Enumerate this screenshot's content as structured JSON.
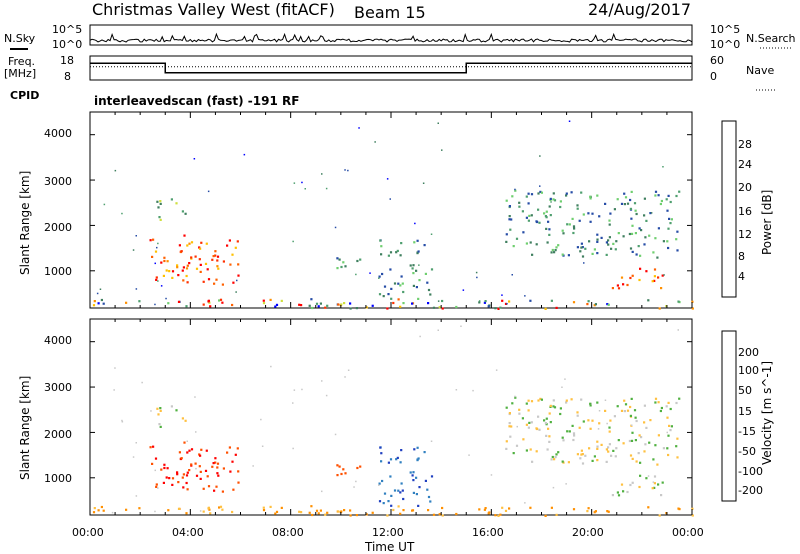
{
  "header": {
    "station": "Christmas Valley West (fitACF)",
    "beam": "Beam 15",
    "date": "24/Aug/2017"
  },
  "nsky_panel": {
    "left_label": "N.Sky",
    "right_label": "N.Search",
    "left_ticks": [
      "10^5",
      "10^0"
    ],
    "right_ticks": [
      "10^5",
      "10^0"
    ]
  },
  "freq_panel": {
    "left_label_line1": "Freq.",
    "left_label_line2": "[MHz]",
    "right_label": "Nave",
    "left_ticks": [
      "18",
      "8"
    ],
    "right_ticks": [
      "60",
      "0"
    ]
  },
  "cpid": {
    "label": "CPID",
    "value": "interleavedscan (fast) -191 RF"
  },
  "colors": {
    "power": [
      "#0000ff",
      "#264ca6",
      "#3f7f5f",
      "#4f9f6f",
      "#6fcf6f",
      "#cfdf3f",
      "#ffc000",
      "#ff9000",
      "#ff6000",
      "#ff3000",
      "#ff0000"
    ],
    "velocity": [
      "#ff0000",
      "#ff5000",
      "#ff9000",
      "#ffc040",
      "#c8c8c8",
      "#50b040",
      "#80d040",
      "#3080c0",
      "#2040c0"
    ],
    "ground": "#c8c8c8"
  },
  "chart_data": [
    {
      "type": "heatmap",
      "name_hint": "power",
      "ylabel": "Slant Range [km]",
      "xlabel": "",
      "colorbar_label": "Power [dB]",
      "colorbar_ticks": [
        "4",
        "8",
        "12",
        "16",
        "20",
        "24",
        "28"
      ],
      "y_ticks": [
        "1000",
        "2000",
        "3000",
        "4000"
      ],
      "ylim": [
        180,
        4500
      ],
      "xlim": [
        0,
        24
      ],
      "echo_regions": [
        {
          "t0": 2.2,
          "t1": 6.0,
          "r0": 700,
          "r1": 1800,
          "level": "high"
        },
        {
          "t0": 2.6,
          "t1": 3.8,
          "r0": 2100,
          "r1": 2600,
          "level": "medium"
        },
        {
          "t0": 9.2,
          "t1": 11.2,
          "r0": 1050,
          "r1": 1300,
          "level": "low"
        },
        {
          "t0": 11.5,
          "t1": 13.6,
          "r0": 400,
          "r1": 1700,
          "level": "low"
        },
        {
          "t0": 16.5,
          "t1": 23.5,
          "r0": 1300,
          "r1": 2800,
          "level": "low"
        },
        {
          "t0": 20.8,
          "t1": 23.0,
          "r0": 600,
          "r1": 1100,
          "level": "high"
        },
        {
          "t0": 0.0,
          "t1": 24.0,
          "r0": 180,
          "r1": 400,
          "level": "mixed"
        }
      ]
    },
    {
      "type": "heatmap",
      "name_hint": "velocity",
      "ylabel": "Slant Range [km]",
      "xlabel": "Time UT",
      "colorbar_label": "Velocity [m s^-1]",
      "colorbar_ticks": [
        "200",
        "100",
        "50",
        "15",
        "-15",
        "-50",
        "-100",
        "-200"
      ],
      "y_ticks": [
        "1000",
        "2000",
        "3000",
        "4000"
      ],
      "x_ticks": [
        "00:00",
        "04:00",
        "08:00",
        "12:00",
        "16:00",
        "20:00",
        "00:00"
      ],
      "ylim": [
        180,
        4500
      ],
      "xlim": [
        0,
        24
      ],
      "echo_regions": [
        {
          "t0": 2.2,
          "t1": 6.0,
          "r0": 700,
          "r1": 1800,
          "velocity": -150
        },
        {
          "t0": 2.6,
          "t1": 3.8,
          "r0": 2100,
          "r1": 2600,
          "velocity": 0
        },
        {
          "t0": 9.2,
          "t1": 11.2,
          "r0": 1050,
          "r1": 1300,
          "velocity": -100
        },
        {
          "t0": 11.5,
          "t1": 13.6,
          "r0": 400,
          "r1": 1700,
          "velocity": 150
        },
        {
          "t0": 16.5,
          "t1": 23.5,
          "r0": 1300,
          "r1": 2800,
          "velocity": 0
        },
        {
          "t0": 20.8,
          "t1": 23.0,
          "r0": 600,
          "r1": 1100,
          "velocity": 0
        },
        {
          "t0": 0.0,
          "t1": 24.0,
          "r0": 180,
          "r1": 400,
          "velocity": -40
        }
      ]
    }
  ]
}
